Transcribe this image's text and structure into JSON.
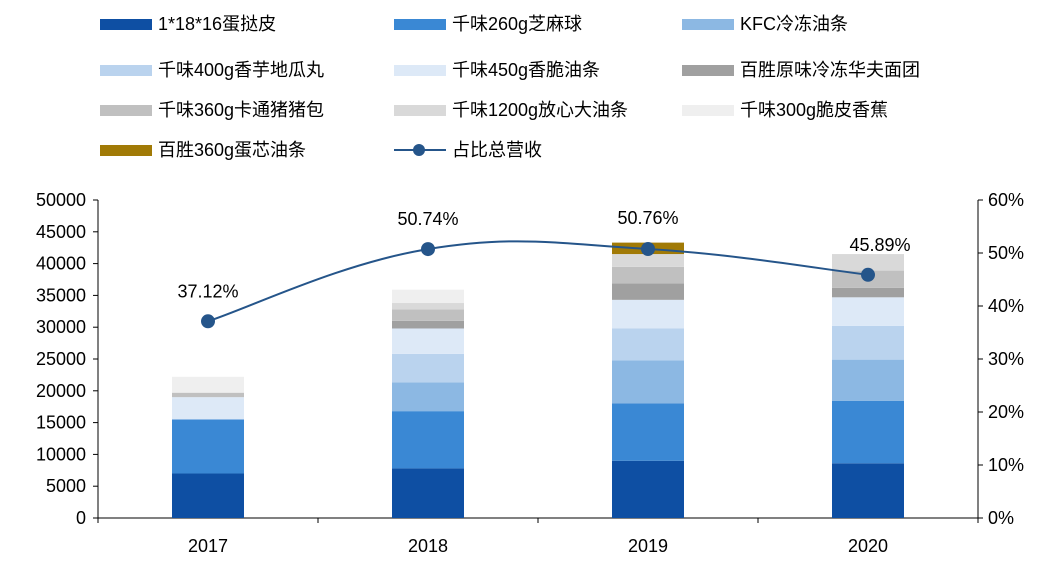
{
  "chart_data": {
    "type": "bar",
    "stacked": true,
    "categories": [
      "2017",
      "2018",
      "2019",
      "2020"
    ],
    "series": [
      {
        "name": "1*18*16蛋挞皮",
        "color": "#0e4fa3",
        "values": [
          7000,
          7800,
          9000,
          8600
        ]
      },
      {
        "name": "千味260g芝麻球",
        "color": "#3a88d4",
        "values": [
          8500,
          9000,
          9000,
          9800
        ]
      },
      {
        "name": "KFC冷冻油条",
        "color": "#8cb8e3",
        "values": [
          0,
          4500,
          6800,
          6500
        ]
      },
      {
        "name": "千味400g香芋地瓜丸",
        "color": "#bad3ee",
        "values": [
          0,
          4500,
          5000,
          5300
        ]
      },
      {
        "name": "千味450g香脆油条",
        "color": "#dde9f7",
        "values": [
          3500,
          4000,
          4500,
          4500
        ]
      },
      {
        "name": "百胜原味冷冻华夫面团",
        "color": "#a0a0a0",
        "values": [
          0,
          1200,
          2600,
          1500
        ]
      },
      {
        "name": "千味360g卡通猪猪包",
        "color": "#c0c0c0",
        "values": [
          700,
          1800,
          2600,
          2700
        ]
      },
      {
        "name": "千味1200g放心大油条",
        "color": "#d9d9d9",
        "values": [
          0,
          1000,
          2000,
          2600
        ]
      },
      {
        "name": "千味300g脆皮香蕉",
        "color": "#efefef",
        "values": [
          2500,
          2100,
          0,
          0
        ]
      },
      {
        "name": "百胜360g蛋芯油条",
        "color": "#a17a06",
        "values": [
          0,
          0,
          1800,
          0
        ]
      }
    ],
    "line_series": {
      "name": "占比总营收",
      "color": "#25558a",
      "values": [
        37.12,
        50.74,
        50.76,
        45.89
      ],
      "labels": [
        "37.12%",
        "50.74%",
        "50.76%",
        "45.89%"
      ]
    },
    "y_left": {
      "min": 0,
      "max": 50000,
      "ticks": [
        "0",
        "5000",
        "10000",
        "15000",
        "20000",
        "25000",
        "30000",
        "35000",
        "40000",
        "45000",
        "50000"
      ]
    },
    "y_right": {
      "min": 0,
      "max": 60,
      "ticks": [
        "0%",
        "10%",
        "20%",
        "30%",
        "40%",
        "50%",
        "60%"
      ]
    },
    "legend_position": "top",
    "grid": false
  }
}
